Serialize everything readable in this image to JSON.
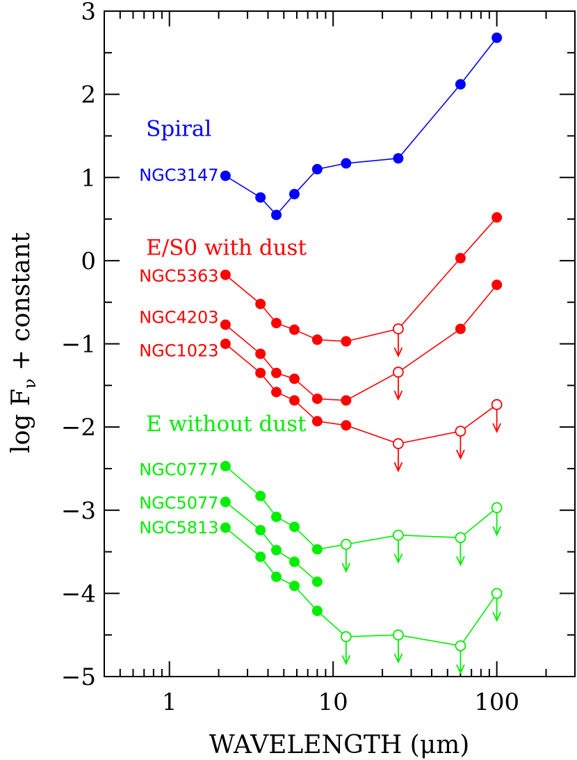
{
  "chart_data": {
    "type": "scatter",
    "xscale": "log",
    "xlim": [
      0.4,
      300
    ],
    "ylim": [
      -5,
      3
    ],
    "xlabel": "WAVELENGTH (μm)",
    "ylabel": "log F_ν + constant",
    "x_tick_labels": [
      "1",
      "10",
      "100"
    ],
    "y_tick_labels": [
      "3",
      "2",
      "1",
      "0",
      "−1",
      "−2",
      "−3",
      "−4",
      "−5"
    ],
    "groups": [
      {
        "label": "Spiral",
        "color": "#0000ff",
        "label_anchor": {
          "x": 0.72,
          "y": 1.5
        }
      },
      {
        "label": "E/S0 with dust",
        "color": "#ff0000",
        "label_anchor": {
          "x": 0.72,
          "y": 0.07
        }
      },
      {
        "label": "E without dust",
        "color": "#00ee00",
        "label_anchor": {
          "x": 0.72,
          "y": -2.05
        }
      }
    ],
    "series": [
      {
        "name": "NGC3147",
        "group": 0,
        "color": "#0000ff",
        "label_anchor": {
          "x": 2.0,
          "y": 0.96
        },
        "points": [
          {
            "x": 2.2,
            "y": 1.02,
            "upper_limit": false
          },
          {
            "x": 3.6,
            "y": 0.76,
            "upper_limit": false
          },
          {
            "x": 4.5,
            "y": 0.55,
            "upper_limit": false
          },
          {
            "x": 5.8,
            "y": 0.8,
            "upper_limit": false
          },
          {
            "x": 8.0,
            "y": 1.1,
            "upper_limit": false
          },
          {
            "x": 12,
            "y": 1.17,
            "upper_limit": false
          },
          {
            "x": 25,
            "y": 1.23,
            "upper_limit": false
          },
          {
            "x": 60,
            "y": 2.12,
            "upper_limit": false
          },
          {
            "x": 100,
            "y": 2.68,
            "upper_limit": false
          }
        ]
      },
      {
        "name": "NGC5363",
        "group": 1,
        "color": "#ff0000",
        "label_anchor": {
          "x": 2.0,
          "y": -0.25
        },
        "points": [
          {
            "x": 2.2,
            "y": -0.17,
            "upper_limit": false
          },
          {
            "x": 3.6,
            "y": -0.52,
            "upper_limit": false
          },
          {
            "x": 4.5,
            "y": -0.75,
            "upper_limit": false
          },
          {
            "x": 5.8,
            "y": -0.83,
            "upper_limit": false
          },
          {
            "x": 8.0,
            "y": -0.95,
            "upper_limit": false
          },
          {
            "x": 12,
            "y": -0.97,
            "upper_limit": false
          },
          {
            "x": 25,
            "y": -0.82,
            "upper_limit": true
          },
          {
            "x": 60,
            "y": 0.03,
            "upper_limit": false
          },
          {
            "x": 100,
            "y": 0.52,
            "upper_limit": false
          }
        ]
      },
      {
        "name": "NGC4203",
        "group": 1,
        "color": "#ff0000",
        "label_anchor": {
          "x": 2.0,
          "y": -0.75
        },
        "points": [
          {
            "x": 2.2,
            "y": -0.77,
            "upper_limit": false
          },
          {
            "x": 3.6,
            "y": -1.12,
            "upper_limit": false
          },
          {
            "x": 4.5,
            "y": -1.35,
            "upper_limit": false
          },
          {
            "x": 5.8,
            "y": -1.42,
            "upper_limit": false
          },
          {
            "x": 8.0,
            "y": -1.66,
            "upper_limit": false
          },
          {
            "x": 12,
            "y": -1.68,
            "upper_limit": false
          },
          {
            "x": 25,
            "y": -1.34,
            "upper_limit": true
          },
          {
            "x": 60,
            "y": -0.82,
            "upper_limit": false
          },
          {
            "x": 100,
            "y": -0.29,
            "upper_limit": false
          }
        ]
      },
      {
        "name": "NGC1023",
        "group": 1,
        "color": "#ff0000",
        "label_anchor": {
          "x": 2.0,
          "y": -1.15
        },
        "points": [
          {
            "x": 2.2,
            "y": -1.0,
            "upper_limit": false
          },
          {
            "x": 3.6,
            "y": -1.35,
            "upper_limit": false
          },
          {
            "x": 4.5,
            "y": -1.58,
            "upper_limit": false
          },
          {
            "x": 5.8,
            "y": -1.68,
            "upper_limit": false
          },
          {
            "x": 8.0,
            "y": -1.93,
            "upper_limit": false
          },
          {
            "x": 12,
            "y": -1.98,
            "upper_limit": false
          },
          {
            "x": 25,
            "y": -2.2,
            "upper_limit": true
          },
          {
            "x": 60,
            "y": -2.05,
            "upper_limit": true
          },
          {
            "x": 100,
            "y": -1.73,
            "upper_limit": true
          }
        ]
      },
      {
        "name": "NGC0777",
        "group": 2,
        "color": "#00ee00",
        "label_anchor": {
          "x": 2.0,
          "y": -2.58
        },
        "points": [
          {
            "x": 2.2,
            "y": -2.47,
            "upper_limit": false
          },
          {
            "x": 3.6,
            "y": -2.83,
            "upper_limit": false
          },
          {
            "x": 4.5,
            "y": -3.08,
            "upper_limit": false
          },
          {
            "x": 5.8,
            "y": -3.2,
            "upper_limit": false
          },
          {
            "x": 8.0,
            "y": -3.47,
            "upper_limit": false
          },
          {
            "x": 12,
            "y": -3.41,
            "upper_limit": true
          },
          {
            "x": 25,
            "y": -3.3,
            "upper_limit": true
          },
          {
            "x": 60,
            "y": -3.33,
            "upper_limit": true
          },
          {
            "x": 100,
            "y": -2.97,
            "upper_limit": true
          }
        ]
      },
      {
        "name": "NGC5077",
        "group": 2,
        "color": "#00ee00",
        "label_anchor": {
          "x": 2.0,
          "y": -2.98
        },
        "points": [
          {
            "x": 2.2,
            "y": -2.9,
            "upper_limit": false
          },
          {
            "x": 3.6,
            "y": -3.24,
            "upper_limit": false
          },
          {
            "x": 4.5,
            "y": -3.48,
            "upper_limit": false
          },
          {
            "x": 5.8,
            "y": -3.62,
            "upper_limit": false
          },
          {
            "x": 8.0,
            "y": -3.86,
            "upper_limit": false
          }
        ]
      },
      {
        "name": "NGC5813",
        "group": 2,
        "color": "#00ee00",
        "label_anchor": {
          "x": 2.0,
          "y": -3.28
        },
        "points": [
          {
            "x": 2.2,
            "y": -3.21,
            "upper_limit": false
          },
          {
            "x": 3.6,
            "y": -3.56,
            "upper_limit": false
          },
          {
            "x": 4.5,
            "y": -3.8,
            "upper_limit": false
          },
          {
            "x": 5.8,
            "y": -3.91,
            "upper_limit": false
          },
          {
            "x": 8.0,
            "y": -4.21,
            "upper_limit": false
          },
          {
            "x": 12,
            "y": -4.52,
            "upper_limit": true
          },
          {
            "x": 25,
            "y": -4.5,
            "upper_limit": true
          },
          {
            "x": 60,
            "y": -4.63,
            "upper_limit": true
          },
          {
            "x": 100,
            "y": -4.0,
            "upper_limit": true
          }
        ]
      }
    ]
  }
}
